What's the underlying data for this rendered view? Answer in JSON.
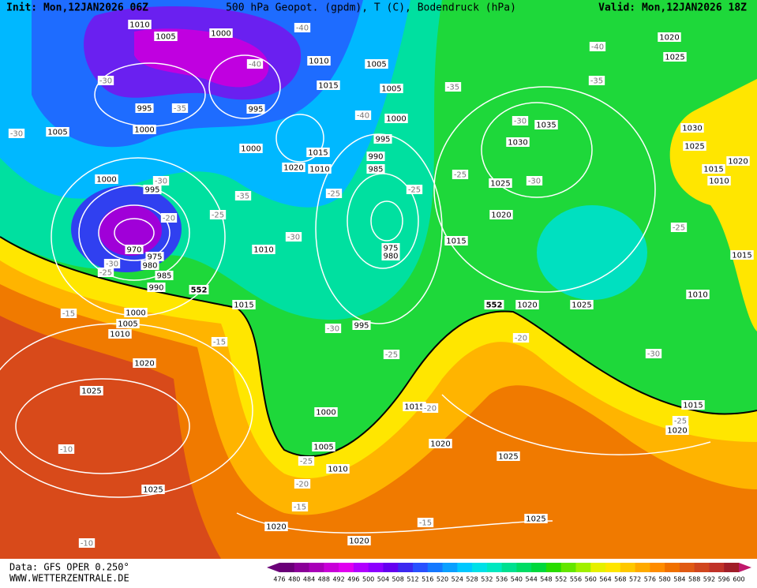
{
  "header": {
    "init": "Init: Mon,12JAN2026 06Z",
    "title": "500 hPa Geopot. (gpdm), T (C), Bodendruck (hPa)",
    "valid": "Valid: Mon,12JAN2026 18Z"
  },
  "footer": {
    "data": "Data: GFS OPER 0.250°",
    "site": "WWW.WETTERZENTRALE.DE"
  },
  "scale": {
    "labels": [
      476,
      480,
      484,
      488,
      492,
      496,
      500,
      504,
      508,
      512,
      516,
      520,
      524,
      528,
      532,
      536,
      540,
      544,
      548,
      552,
      556,
      560,
      564,
      568,
      572,
      576,
      580,
      584,
      588,
      592,
      596,
      600
    ],
    "colors": [
      "#6a0078",
      "#8a0098",
      "#a800b8",
      "#c800d8",
      "#e000f0",
      "#b000ff",
      "#8c00ff",
      "#6400f0",
      "#3c28f0",
      "#2850ff",
      "#1478ff",
      "#0aa0ff",
      "#00c8ff",
      "#00e0e8",
      "#00e8c0",
      "#00e090",
      "#00dc64",
      "#00d83c",
      "#28dc00",
      "#64e600",
      "#a0f000",
      "#e6f000",
      "#ffe600",
      "#ffc800",
      "#ffaa00",
      "#ff8c00",
      "#f07000",
      "#e05a14",
      "#d0461e",
      "#c03228",
      "#a01e28"
    ]
  },
  "map": {
    "pressure_labels": [
      1010,
      1005,
      1000,
      1010,
      1005,
      1015,
      1005,
      995,
      995,
      1000,
      1005,
      1000,
      995,
      1000,
      1015,
      990,
      1020,
      1010,
      985,
      1000,
      995,
      1010,
      975,
      980,
      970,
      975,
      980,
      985,
      990,
      1015,
      1000,
      1005,
      1010,
      995,
      1020,
      1025,
      1000,
      1005,
      1010,
      1025,
      1020,
      1020,
      1015,
      1020,
      1025,
      1025,
      1015,
      1020,
      1025,
      1030,
      1035,
      1020,
      1025,
      1010,
      1015,
      1020,
      1030,
      1025,
      1015,
      1010,
      1020,
      1015,
      1020,
      1025
    ],
    "temperature_labels": [
      -40,
      -40,
      -35,
      -30,
      -30,
      -40,
      -35,
      -40,
      -35,
      -30,
      -30,
      -20,
      -25,
      -35,
      -25,
      -25,
      -25,
      -30,
      -30,
      -25,
      -30,
      -30,
      -25,
      -15,
      -15,
      -25,
      -20,
      -30,
      -25,
      -20,
      -25,
      -20,
      -15,
      -15,
      -10,
      -10
    ],
    "height_labels": [
      552,
      552
    ]
  }
}
